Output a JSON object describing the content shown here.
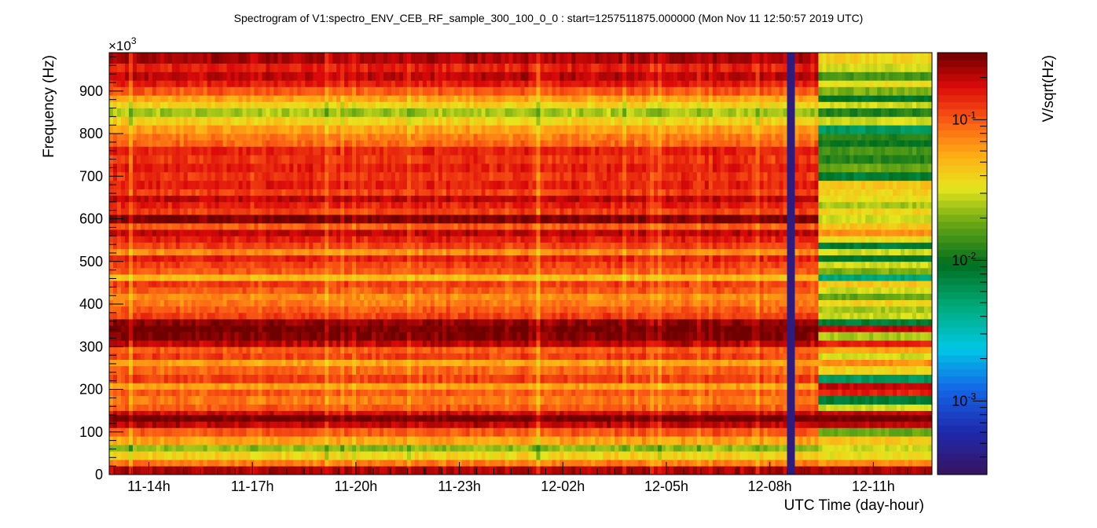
{
  "chart_data": {
    "type": "heatmap",
    "title": "Spectrogram of V1:spectro_ENV_CEB_RF_sample_300_100_0_0 : start=1257511875.000000 (Mon Nov 11 12:50:57 2019 UTC)",
    "xlabel": "UTC Time (day-hour)",
    "ylabel": "Frequency (Hz)",
    "y_multiplier": "×10",
    "y_multiplier_exp": "3",
    "colorbar_label": "V/sqrt(Hz)",
    "color_scale": "log",
    "colorbar_range": [
      0.0003,
      0.3
    ],
    "colorbar_ticks": [
      {
        "value": 0.1,
        "base": "10",
        "exp": "-1"
      },
      {
        "value": 0.01,
        "base": "10",
        "exp": "-2"
      },
      {
        "value": 0.001,
        "base": "10",
        "exp": "-3"
      }
    ],
    "xlim_hours": [
      12.85,
      36.7
    ],
    "ylim": [
      0,
      990
    ],
    "x_ticks": [
      {
        "label": "11-14h",
        "hours": 14
      },
      {
        "label": "11-17h",
        "hours": 17
      },
      {
        "label": "11-20h",
        "hours": 20
      },
      {
        "label": "11-23h",
        "hours": 23
      },
      {
        "label": "12-02h",
        "hours": 26
      },
      {
        "label": "12-05h",
        "hours": 29
      },
      {
        "label": "12-08h",
        "hours": 32
      },
      {
        "label": "12-11h",
        "hours": 35
      }
    ],
    "y_ticks": [
      0,
      100,
      200,
      300,
      400,
      500,
      600,
      700,
      800,
      900
    ],
    "time_columns": 210,
    "freq_bins": [
      {
        "f0": 0,
        "f1": 20,
        "a": 0.22,
        "b": 0.22
      },
      {
        "f0": 20,
        "f1": 35,
        "a": 0.08,
        "b": 0.07
      },
      {
        "f0": 35,
        "f1": 55,
        "a": 0.04,
        "b": 0.035
      },
      {
        "f0": 55,
        "f1": 70,
        "a": 0.022,
        "b": 0.03
      },
      {
        "f0": 70,
        "f1": 90,
        "a": 0.06,
        "b": 0.045
      },
      {
        "f0": 90,
        "f1": 110,
        "a": 0.1,
        "b": 0.018
      },
      {
        "f0": 110,
        "f1": 125,
        "a": 0.2,
        "b": 0.2
      },
      {
        "f0": 125,
        "f1": 140,
        "a": 0.3,
        "b": 0.3
      },
      {
        "f0": 140,
        "f1": 150,
        "a": 0.18,
        "b": 0.2
      },
      {
        "f0": 150,
        "f1": 165,
        "a": 0.1,
        "b": 0.03
      },
      {
        "f0": 165,
        "f1": 185,
        "a": 0.08,
        "b": 0.008
      },
      {
        "f0": 185,
        "f1": 200,
        "a": 0.1,
        "b": 0.15
      },
      {
        "f0": 200,
        "f1": 215,
        "a": 0.06,
        "b": 0.2
      },
      {
        "f0": 215,
        "f1": 235,
        "a": 0.12,
        "b": 0.006
      },
      {
        "f0": 235,
        "f1": 255,
        "a": 0.09,
        "b": 0.04
      },
      {
        "f0": 255,
        "f1": 270,
        "a": 0.06,
        "b": 0.07
      },
      {
        "f0": 270,
        "f1": 285,
        "a": 0.12,
        "b": 0.03
      },
      {
        "f0": 285,
        "f1": 300,
        "a": 0.1,
        "b": 0.06
      },
      {
        "f0": 300,
        "f1": 315,
        "a": 0.2,
        "b": 0.15
      },
      {
        "f0": 315,
        "f1": 335,
        "a": 0.28,
        "b": 0.025
      },
      {
        "f0": 335,
        "f1": 350,
        "a": 0.3,
        "b": 0.2
      },
      {
        "f0": 350,
        "f1": 365,
        "a": 0.25,
        "b": 0.008
      },
      {
        "f0": 365,
        "f1": 380,
        "a": 0.12,
        "b": 0.03
      },
      {
        "f0": 380,
        "f1": 395,
        "a": 0.1,
        "b": 0.025
      },
      {
        "f0": 395,
        "f1": 410,
        "a": 0.08,
        "b": 0.04
      },
      {
        "f0": 410,
        "f1": 425,
        "a": 0.07,
        "b": 0.018
      },
      {
        "f0": 425,
        "f1": 440,
        "a": 0.1,
        "b": 0.03
      },
      {
        "f0": 440,
        "f1": 455,
        "a": 0.12,
        "b": 0.045
      },
      {
        "f0": 455,
        "f1": 470,
        "a": 0.05,
        "b": 0.005
      },
      {
        "f0": 470,
        "f1": 485,
        "a": 0.1,
        "b": 0.02
      },
      {
        "f0": 485,
        "f1": 500,
        "a": 0.12,
        "b": 0.03
      },
      {
        "f0": 500,
        "f1": 515,
        "a": 0.15,
        "b": 0.009
      },
      {
        "f0": 515,
        "f1": 530,
        "a": 0.07,
        "b": 0.03
      },
      {
        "f0": 530,
        "f1": 545,
        "a": 0.12,
        "b": 0.008
      },
      {
        "f0": 545,
        "f1": 560,
        "a": 0.15,
        "b": 0.035
      },
      {
        "f0": 560,
        "f1": 575,
        "a": 0.2,
        "b": 0.07
      },
      {
        "f0": 575,
        "f1": 590,
        "a": 0.1,
        "b": 0.045
      },
      {
        "f0": 590,
        "f1": 610,
        "a": 0.28,
        "b": 0.03
      },
      {
        "f0": 610,
        "f1": 625,
        "a": 0.12,
        "b": 0.04
      },
      {
        "f0": 625,
        "f1": 640,
        "a": 0.15,
        "b": 0.025
      },
      {
        "f0": 640,
        "f1": 655,
        "a": 0.2,
        "b": 0.035
      },
      {
        "f0": 655,
        "f1": 670,
        "a": 0.12,
        "b": 0.04
      },
      {
        "f0": 670,
        "f1": 690,
        "a": 0.15,
        "b": 0.045
      },
      {
        "f0": 690,
        "f1": 710,
        "a": 0.13,
        "b": 0.008
      },
      {
        "f0": 710,
        "f1": 730,
        "a": 0.15,
        "b": 0.018
      },
      {
        "f0": 730,
        "f1": 750,
        "a": 0.13,
        "b": 0.012
      },
      {
        "f0": 750,
        "f1": 770,
        "a": 0.15,
        "b": 0.015
      },
      {
        "f0": 770,
        "f1": 785,
        "a": 0.09,
        "b": 0.01
      },
      {
        "f0": 785,
        "f1": 800,
        "a": 0.08,
        "b": 0.012
      },
      {
        "f0": 800,
        "f1": 820,
        "a": 0.06,
        "b": 0.006
      },
      {
        "f0": 820,
        "f1": 840,
        "a": 0.04,
        "b": 0.03
      },
      {
        "f0": 840,
        "f1": 860,
        "a": 0.025,
        "b": 0.012
      },
      {
        "f0": 860,
        "f1": 875,
        "a": 0.04,
        "b": 0.03
      },
      {
        "f0": 875,
        "f1": 890,
        "a": 0.06,
        "b": 0.009
      },
      {
        "f0": 890,
        "f1": 910,
        "a": 0.1,
        "b": 0.02
      },
      {
        "f0": 910,
        "f1": 925,
        "a": 0.15,
        "b": 0.035
      },
      {
        "f0": 925,
        "f1": 945,
        "a": 0.2,
        "b": 0.015
      },
      {
        "f0": 945,
        "f1": 965,
        "a": 0.15,
        "b": 0.03
      },
      {
        "f0": 965,
        "f1": 990,
        "a": 0.22,
        "b": 0.04
      }
    ],
    "gap": {
      "start_hours": 32.45,
      "end_hours": 32.68,
      "value": 0.0004
    },
    "transition_hours": 33.35
  }
}
